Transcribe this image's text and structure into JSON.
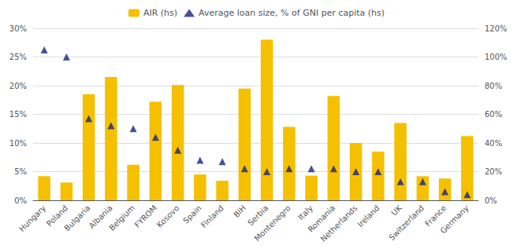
{
  "chart_data": {
    "type": "bar",
    "categories": [
      "Hungary",
      "Poland",
      "Bulgaria",
      "Albania",
      "Belgium",
      "FYROM",
      "Kosovo",
      "Spain",
      "Finland",
      "BiH",
      "Serbia",
      "Montenegro",
      "Italy",
      "Romania",
      "Netherlands",
      "Ireland",
      "UK",
      "Switzerland",
      "France",
      "Germany"
    ],
    "series": [
      {
        "name": "AIR (hs)",
        "type": "bar",
        "color": "#F5C000",
        "values": [
          4.2,
          3.1,
          18.5,
          21.5,
          6.2,
          17.2,
          20.1,
          4.5,
          3.4,
          19.5,
          28.0,
          12.8,
          4.3,
          18.2,
          10.0,
          8.5,
          13.5,
          4.2,
          3.8,
          11.2
        ]
      },
      {
        "name": "Average loan size, % of GNI per capita (hs)",
        "type": "scatter",
        "marker": "triangle",
        "color": "#1a237e",
        "axis": "y2",
        "values": [
          105,
          100,
          57,
          52,
          50,
          44,
          35,
          28,
          27,
          22,
          20,
          22,
          22,
          22,
          20,
          20,
          13,
          13,
          6,
          4
        ]
      }
    ],
    "ylim": [
      0,
      30
    ],
    "yticks": [
      {
        "value": 0,
        "label": "0%"
      },
      {
        "value": 5,
        "label": "5%"
      },
      {
        "value": 10,
        "label": "10%"
      },
      {
        "value": 15,
        "label": "15%"
      },
      {
        "value": 20,
        "label": "20%"
      },
      {
        "value": 25,
        "label": "25%"
      },
      {
        "value": 30,
        "label": "30%"
      }
    ],
    "y2lim": [
      0,
      120
    ],
    "y2ticks": [
      {
        "value": 0,
        "label": "0%"
      },
      {
        "value": 20,
        "label": "20%"
      },
      {
        "value": 40,
        "label": "40%"
      },
      {
        "value": 60,
        "label": "60%"
      },
      {
        "value": 80,
        "label": "80%"
      },
      {
        "value": 100,
        "label": "100%"
      },
      {
        "value": 120,
        "label": "120%"
      }
    ],
    "grid": true,
    "legend": "top"
  }
}
